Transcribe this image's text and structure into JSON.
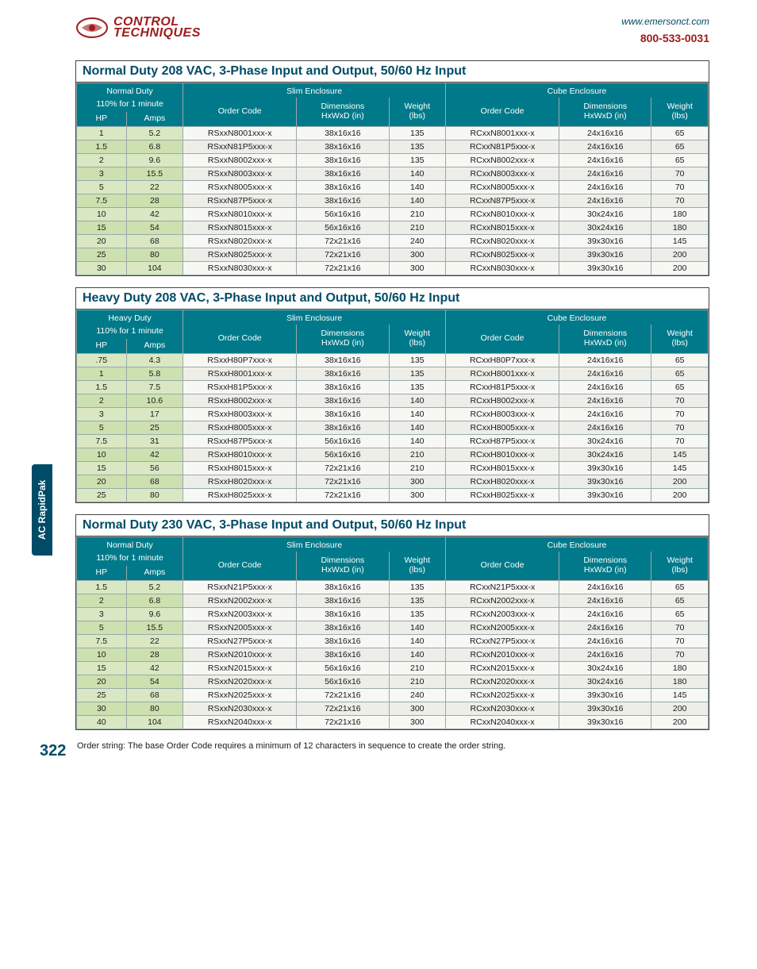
{
  "header": {
    "logo_line1": "CONTROL",
    "logo_line2": "TECHNIQUES",
    "website": "www.emersonct.com",
    "phone": "800-533-0031"
  },
  "side_tab": "AC RapidPak",
  "page_number": "322",
  "footnote": "Order string: The base Order Code requires a minimum of 12 characters in sequence to create the order string.",
  "column_labels": {
    "duty_sub": "110% for 1 minute",
    "hp": "HP",
    "amps": "Amps",
    "slim": "Slim Enclosure",
    "cube": "Cube Enclosure",
    "order_code": "Order Code",
    "dimensions": "Dimensions\nHxWxD (in)",
    "weight": "Weight\n(lbs)"
  },
  "tables": [
    {
      "title": "Normal Duty 208 VAC, 3-Phase Input and Output, 50/60 Hz Input",
      "duty_label": "Normal Duty",
      "rows": [
        [
          "1",
          "5.2",
          "RSxxN8001xxx-x",
          "38x16x16",
          "135",
          "RCxxN8001xxx-x",
          "24x16x16",
          "65"
        ],
        [
          "1.5",
          "6.8",
          "RSxxN81P5xxx-x",
          "38x16x16",
          "135",
          "RCxxN81P5xxx-x",
          "24x16x16",
          "65"
        ],
        [
          "2",
          "9.6",
          "RSxxN8002xxx-x",
          "38x16x16",
          "135",
          "RCxxN8002xxx-x",
          "24x16x16",
          "65"
        ],
        [
          "3",
          "15.5",
          "RSxxN8003xxx-x",
          "38x16x16",
          "140",
          "RCxxN8003xxx-x",
          "24x16x16",
          "70"
        ],
        [
          "5",
          "22",
          "RSxxN8005xxx-x",
          "38x16x16",
          "140",
          "RCxxN8005xxx-x",
          "24x16x16",
          "70"
        ],
        [
          "7.5",
          "28",
          "RSxxN87P5xxx-x",
          "38x16x16",
          "140",
          "RCxxN87P5xxx-x",
          "24x16x16",
          "70"
        ],
        [
          "10",
          "42",
          "RSxxN8010xxx-x",
          "56x16x16",
          "210",
          "RCxxN8010xxx-x",
          "30x24x16",
          "180"
        ],
        [
          "15",
          "54",
          "RSxxN8015xxx-x",
          "56x16x16",
          "210",
          "RCxxN8015xxx-x",
          "30x24x16",
          "180"
        ],
        [
          "20",
          "68",
          "RSxxN8020xxx-x",
          "72x21x16",
          "240",
          "RCxxN8020xxx-x",
          "39x30x16",
          "145"
        ],
        [
          "25",
          "80",
          "RSxxN8025xxx-x",
          "72x21x16",
          "300",
          "RCxxN8025xxx-x",
          "39x30x16",
          "200"
        ],
        [
          "30",
          "104",
          "RSxxN8030xxx-x",
          "72x21x16",
          "300",
          "RCxxN8030xxx-x",
          "39x30x16",
          "200"
        ]
      ]
    },
    {
      "title": "Heavy Duty 208 VAC, 3-Phase Input and Output, 50/60 Hz Input",
      "duty_label": "Heavy Duty",
      "rows": [
        [
          ".75",
          "4.3",
          "RSxxH80P7xxx-x",
          "38x16x16",
          "135",
          "RCxxH80P7xxx-x",
          "24x16x16",
          "65"
        ],
        [
          "1",
          "5.8",
          "RSxxH8001xxx-x",
          "38x16x16",
          "135",
          "RCxxH8001xxx-x",
          "24x16x16",
          "65"
        ],
        [
          "1.5",
          "7.5",
          "RSxxH81P5xxx-x",
          "38x16x16",
          "135",
          "RCxxH81P5xxx-x",
          "24x16x16",
          "65"
        ],
        [
          "2",
          "10.6",
          "RSxxH8002xxx-x",
          "38x16x16",
          "140",
          "RCxxH8002xxx-x",
          "24x16x16",
          "70"
        ],
        [
          "3",
          "17",
          "RSxxH8003xxx-x",
          "38x16x16",
          "140",
          "RCxxH8003xxx-x",
          "24x16x16",
          "70"
        ],
        [
          "5",
          "25",
          "RSxxH8005xxx-x",
          "38x16x16",
          "140",
          "RCxxH8005xxx-x",
          "24x16x16",
          "70"
        ],
        [
          "7.5",
          "31",
          "RSxxH87P5xxx-x",
          "56x16x16",
          "140",
          "RCxxH87P5xxx-x",
          "30x24x16",
          "70"
        ],
        [
          "10",
          "42",
          "RSxxH8010xxx-x",
          "56x16x16",
          "210",
          "RCxxH8010xxx-x",
          "30x24x16",
          "145"
        ],
        [
          "15",
          "56",
          "RSxxH8015xxx-x",
          "72x21x16",
          "210",
          "RCxxH8015xxx-x",
          "39x30x16",
          "145"
        ],
        [
          "20",
          "68",
          "RSxxH8020xxx-x",
          "72x21x16",
          "300",
          "RCxxH8020xxx-x",
          "39x30x16",
          "200"
        ],
        [
          "25",
          "80",
          "RSxxH8025xxx-x",
          "72x21x16",
          "300",
          "RCxxH8025xxx-x",
          "39x30x16",
          "200"
        ]
      ]
    },
    {
      "title": "Normal Duty 230 VAC, 3-Phase Input and Output, 50/60 Hz Input",
      "duty_label": "Normal Duty",
      "rows": [
        [
          "1.5",
          "5.2",
          "RSxxN21P5xxx-x",
          "38x16x16",
          "135",
          "RCxxN21P5xxx-x",
          "24x16x16",
          "65"
        ],
        [
          "2",
          "6.8",
          "RSxxN2002xxx-x",
          "38x16x16",
          "135",
          "RCxxN2002xxx-x",
          "24x16x16",
          "65"
        ],
        [
          "3",
          "9.6",
          "RSxxN2003xxx-x",
          "38x16x16",
          "135",
          "RCxxN2003xxx-x",
          "24x16x16",
          "65"
        ],
        [
          "5",
          "15.5",
          "RSxxN2005xxx-x",
          "38x16x16",
          "140",
          "RCxxN2005xxx-x",
          "24x16x16",
          "70"
        ],
        [
          "7.5",
          "22",
          "RSxxN27P5xxx-x",
          "38x16x16",
          "140",
          "RCxxN27P5xxx-x",
          "24x16x16",
          "70"
        ],
        [
          "10",
          "28",
          "RSxxN2010xxx-x",
          "38x16x16",
          "140",
          "RCxxN2010xxx-x",
          "24x16x16",
          "70"
        ],
        [
          "15",
          "42",
          "RSxxN2015xxx-x",
          "56x16x16",
          "210",
          "RCxxN2015xxx-x",
          "30x24x16",
          "180"
        ],
        [
          "20",
          "54",
          "RSxxN2020xxx-x",
          "56x16x16",
          "210",
          "RCxxN2020xxx-x",
          "30x24x16",
          "180"
        ],
        [
          "25",
          "68",
          "RSxxN2025xxx-x",
          "72x21x16",
          "240",
          "RCxxN2025xxx-x",
          "39x30x16",
          "145"
        ],
        [
          "30",
          "80",
          "RSxxN2030xxx-x",
          "72x21x16",
          "300",
          "RCxxN2030xxx-x",
          "39x30x16",
          "200"
        ],
        [
          "40",
          "104",
          "RSxxN2040xxx-x",
          "72x21x16",
          "300",
          "RCxxN2040xxx-x",
          "39x30x16",
          "200"
        ]
      ]
    }
  ]
}
